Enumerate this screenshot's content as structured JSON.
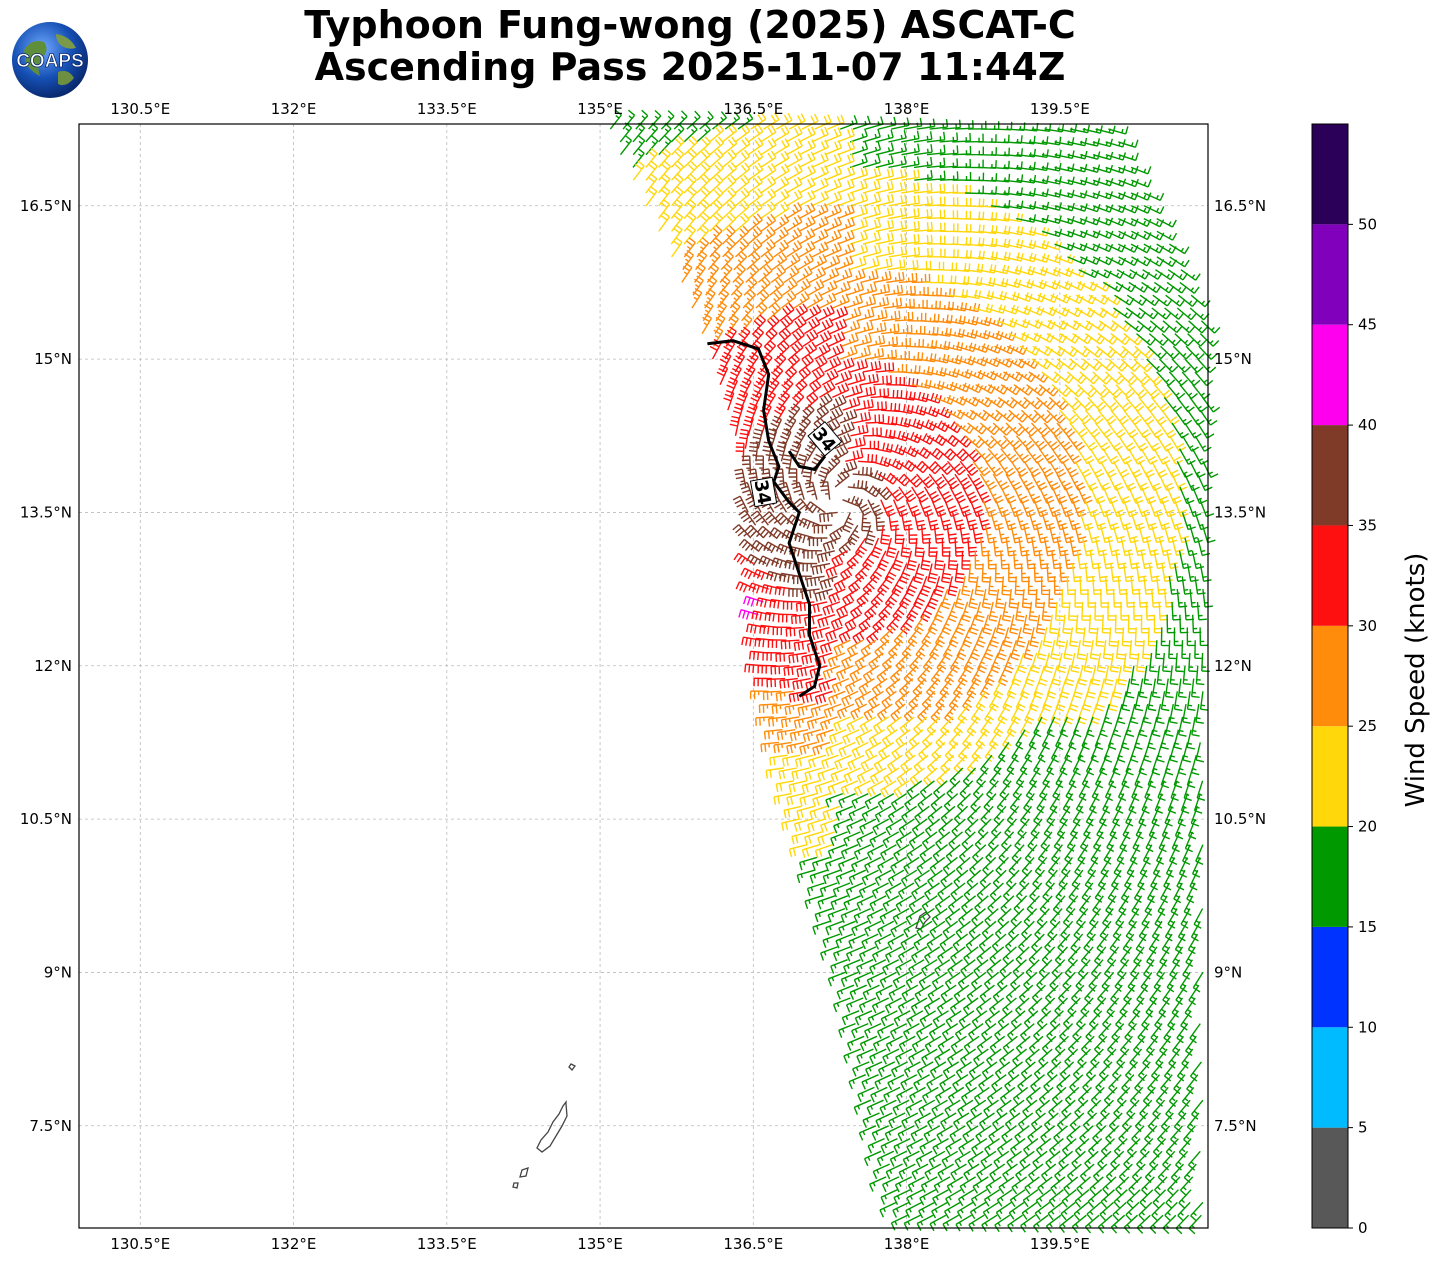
{
  "title": {
    "line1": "Typhoon Fung-wong (2025) ASCAT-C",
    "line2": "Ascending Pass 2025-11-07 11:44Z"
  },
  "logo": {
    "text": "COAPS",
    "icon": "globe-logo-icon"
  },
  "map": {
    "lon_range": [
      129.9,
      140.95
    ],
    "lat_range": [
      6.5,
      17.3
    ],
    "lon_ticks": [
      130.5,
      132,
      133.5,
      135,
      136.5,
      138,
      139.5
    ],
    "lat_ticks": [
      7.5,
      9,
      10.5,
      12,
      13.5,
      15,
      16.5
    ],
    "lon_tick_labels": [
      "130.5°E",
      "132°E",
      "133.5°E",
      "135°E",
      "136.5°E",
      "138°E",
      "139.5°E"
    ],
    "lat_tick_labels": [
      "7.5°N",
      "9°N",
      "10.5°N",
      "12°N",
      "13.5°N",
      "15°N",
      "16.5°N"
    ],
    "gridlines": true,
    "contour_label_1": "34",
    "contour_label_2": "34",
    "contour_34kt": [
      [
        136.05,
        15.15
      ],
      [
        136.3,
        15.18
      ],
      [
        136.55,
        15.1
      ],
      [
        136.65,
        14.85
      ],
      [
        136.6,
        14.5
      ],
      [
        136.65,
        14.2
      ],
      [
        136.75,
        13.95
      ],
      [
        136.7,
        13.8
      ],
      [
        136.85,
        13.6
      ],
      [
        136.95,
        13.5
      ],
      [
        136.85,
        13.2
      ],
      [
        136.95,
        12.9
      ],
      [
        137.05,
        12.6
      ],
      [
        137.05,
        12.3
      ],
      [
        137.15,
        12.0
      ],
      [
        137.1,
        11.8
      ],
      [
        136.95,
        11.7
      ]
    ],
    "contour_34kt_loop": [
      [
        136.85,
        14.1
      ],
      [
        136.95,
        13.95
      ],
      [
        137.1,
        13.92
      ],
      [
        137.2,
        14.05
      ]
    ],
    "land_color": "#444444",
    "contour_color": "#000000"
  },
  "colorbar": {
    "label": "Wind Speed (knots)",
    "ticks": [
      0,
      5,
      10,
      15,
      20,
      25,
      30,
      35,
      40,
      45,
      50
    ],
    "tick_labels": [
      "0",
      "5",
      "10",
      "15",
      "20",
      "25",
      "30",
      "35",
      "40",
      "45",
      "50"
    ],
    "range": [
      0,
      55
    ],
    "bins": [
      {
        "from": 0,
        "to": 5,
        "color": "#585858"
      },
      {
        "from": 5,
        "to": 10,
        "color": "#00bbff"
      },
      {
        "from": 10,
        "to": 15,
        "color": "#0033ff"
      },
      {
        "from": 15,
        "to": 20,
        "color": "#009900"
      },
      {
        "from": 20,
        "to": 25,
        "color": "#ffd70a"
      },
      {
        "from": 25,
        "to": 30,
        "color": "#ff8c0a"
      },
      {
        "from": 30,
        "to": 35,
        "color": "#ff1010"
      },
      {
        "from": 35,
        "to": 40,
        "color": "#7f3a28"
      },
      {
        "from": 40,
        "to": 45,
        "color": "#ff00ee"
      },
      {
        "from": 45,
        "to": 50,
        "color": "#8000bb"
      },
      {
        "from": 50,
        "to": 55,
        "color": "#2b0058"
      }
    ]
  },
  "wind_field": {
    "storm_center": [
      137.35,
      13.6
    ],
    "swath_west_edge": [
      [
        135.1,
        17.2
      ],
      [
        135.7,
        16.0
      ],
      [
        136.1,
        15.0
      ],
      [
        136.4,
        14.0
      ],
      [
        136.5,
        13.0
      ],
      [
        136.6,
        12.0
      ],
      [
        136.8,
        11.0
      ],
      [
        137.1,
        10.0
      ],
      [
        137.4,
        9.0
      ],
      [
        137.6,
        8.0
      ],
      [
        137.8,
        7.0
      ],
      [
        138.0,
        6.5
      ]
    ],
    "swath_width_deg": 5.0,
    "magenta_barbs": [
      [
        136.45,
        12.75
      ],
      [
        136.55,
        12.6
      ],
      [
        136.5,
        12.45
      ]
    ]
  }
}
